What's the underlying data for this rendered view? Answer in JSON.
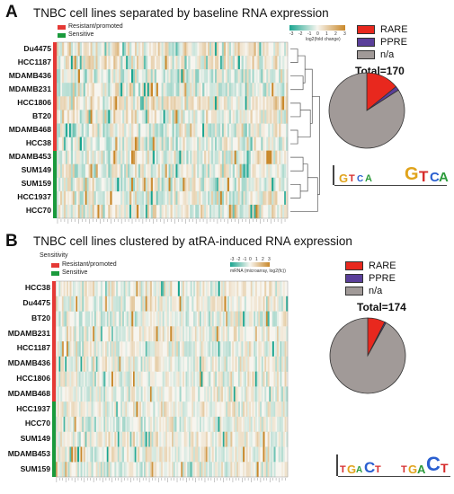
{
  "panel_a": {
    "letter": "A",
    "title": "TNBC cell lines separated by baseline RNA expression",
    "legend": [
      {
        "label": "Resistant/promoted",
        "color": "#e53935"
      },
      {
        "label": "Sensitive",
        "color": "#1a9a3c"
      }
    ],
    "colorbar": {
      "ticks": [
        "-3",
        "-2",
        "-1",
        "0",
        "1",
        "2",
        "3"
      ],
      "label": "log2(fold change)"
    },
    "rows": [
      {
        "name": "Du4475",
        "group": "resistant"
      },
      {
        "name": "HCC1187",
        "group": "resistant"
      },
      {
        "name": "MDAMB436",
        "group": "resistant"
      },
      {
        "name": "MDAMB231",
        "group": "resistant"
      },
      {
        "name": "HCC1806",
        "group": "resistant"
      },
      {
        "name": "BT20",
        "group": "resistant"
      },
      {
        "name": "MDAMB468",
        "group": "resistant"
      },
      {
        "name": "HCC38",
        "group": "resistant"
      },
      {
        "name": "MDAMB453",
        "group": "sensitive"
      },
      {
        "name": "SUM149",
        "group": "sensitive"
      },
      {
        "name": "SUM159",
        "group": "sensitive"
      },
      {
        "name": "HCC1937",
        "group": "sensitive"
      },
      {
        "name": "HCC70",
        "group": "sensitive"
      }
    ],
    "pie": {
      "legend": [
        {
          "label": "RARE",
          "color": "#e8281e"
        },
        {
          "label": "PPRE",
          "color": "#5a3f9a"
        },
        {
          "label": "n/a",
          "color": "#a19a98"
        }
      ],
      "total": "Total=170",
      "slices": [
        {
          "label": "RARE",
          "value": 24
        },
        {
          "label": "PPRE",
          "value": 3
        },
        {
          "label": "n/a",
          "value": 143
        }
      ]
    },
    "motif_letters": [
      "G",
      "T",
      "C",
      "A",
      "G",
      "T",
      "C",
      "A"
    ]
  },
  "panel_b": {
    "letter": "B",
    "title": "TNBC cell lines clustered by atRA-induced RNA expression",
    "sensitivity_label": "Sensitivity",
    "legend": [
      {
        "label": "Resistant/promoted",
        "color": "#e53935"
      },
      {
        "label": "Sensitive",
        "color": "#1a9a3c"
      }
    ],
    "colorbar": {
      "ticks": [
        "-3",
        "-2",
        "-1",
        "0",
        "1",
        "2",
        "3"
      ],
      "label": "mRNA (microarray, log2(fc))"
    },
    "rows": [
      {
        "name": "HCC38",
        "group": "resistant"
      },
      {
        "name": "Du4475",
        "group": "resistant"
      },
      {
        "name": "BT20",
        "group": "resistant"
      },
      {
        "name": "MDAMB231",
        "group": "resistant"
      },
      {
        "name": "HCC1187",
        "group": "resistant"
      },
      {
        "name": "MDAMB436",
        "group": "resistant"
      },
      {
        "name": "HCC1806",
        "group": "resistant"
      },
      {
        "name": "MDAMB468",
        "group": "resistant"
      },
      {
        "name": "HCC1937",
        "group": "sensitive"
      },
      {
        "name": "HCC70",
        "group": "sensitive"
      },
      {
        "name": "SUM149",
        "group": "sensitive"
      },
      {
        "name": "MDAMB453",
        "group": "sensitive"
      },
      {
        "name": "SUM159",
        "group": "sensitive"
      }
    ],
    "pie": {
      "legend": [
        {
          "label": "RARE",
          "color": "#e8281e"
        },
        {
          "label": "PPRE",
          "color": "#5a3f9a"
        },
        {
          "label": "n/a",
          "color": "#a19a98"
        }
      ],
      "total": "Total=174",
      "slices": [
        {
          "label": "RARE",
          "value": 13
        },
        {
          "label": "PPRE",
          "value": 1
        },
        {
          "label": "n/a",
          "value": 160
        }
      ]
    },
    "motif_letters": [
      "T",
      "G",
      "A",
      "C",
      "T",
      "T",
      "G",
      "A",
      "C",
      "T"
    ]
  },
  "colors": {
    "low": "#1aa590",
    "mid": "#f7f5ef",
    "high": "#c9882a",
    "resistant": "#e53935",
    "sensitive": "#1a9a3c"
  }
}
